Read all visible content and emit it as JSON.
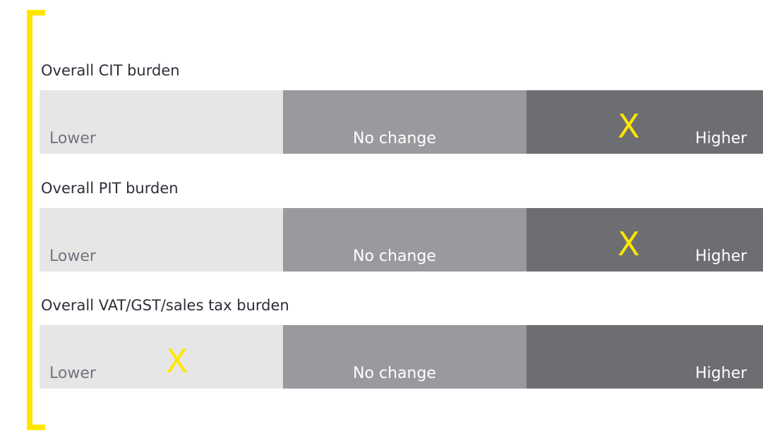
{
  "rows": [
    {
      "title": "Overall CIT burden",
      "options": [
        {
          "label": "Lower"
        },
        {
          "label": "No change"
        },
        {
          "label": "Higher",
          "mark": "X"
        }
      ]
    },
    {
      "title": "Overall PIT burden",
      "options": [
        {
          "label": "Lower"
        },
        {
          "label": "No change"
        },
        {
          "label": "Higher",
          "mark": "X"
        }
      ]
    },
    {
      "title": "Overall VAT/GST/sales tax burden",
      "options": [
        {
          "label": "Lower",
          "mark": "X"
        },
        {
          "label": "No change"
        },
        {
          "label": "Higher"
        }
      ]
    }
  ]
}
